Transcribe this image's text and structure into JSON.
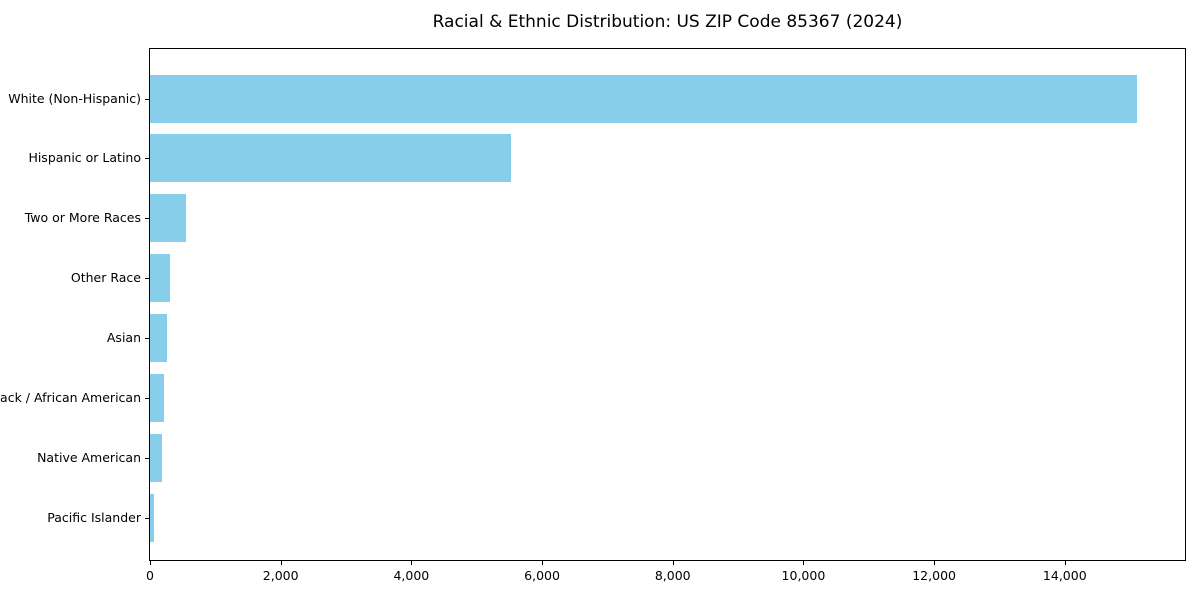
{
  "chart_data": {
    "type": "bar",
    "orientation": "horizontal",
    "title": "Racial & Ethnic Distribution: US ZIP Code 85367 (2024)",
    "categories": [
      "White (Non-Hispanic)",
      "Hispanic or Latino",
      "Two or More Races",
      "Other Race",
      "Asian",
      "Black / African American",
      "Native American",
      "Pacific Islander"
    ],
    "values": [
      15100,
      5530,
      545,
      300,
      260,
      215,
      180,
      60
    ],
    "xlabel": "",
    "ylabel": "",
    "xlim": [
      0,
      15870
    ],
    "x_ticks": [
      0,
      2000,
      4000,
      6000,
      8000,
      10000,
      12000,
      14000
    ],
    "x_tick_labels": [
      "0",
      "2,000",
      "4,000",
      "6,000",
      "8,000",
      "10,000",
      "12,000",
      "14,000"
    ],
    "grid": false,
    "legend": null,
    "bar_color": "#87CEEB",
    "frame_color": "#000000",
    "text_color": "#000000",
    "background_color": "#ffffff"
  }
}
